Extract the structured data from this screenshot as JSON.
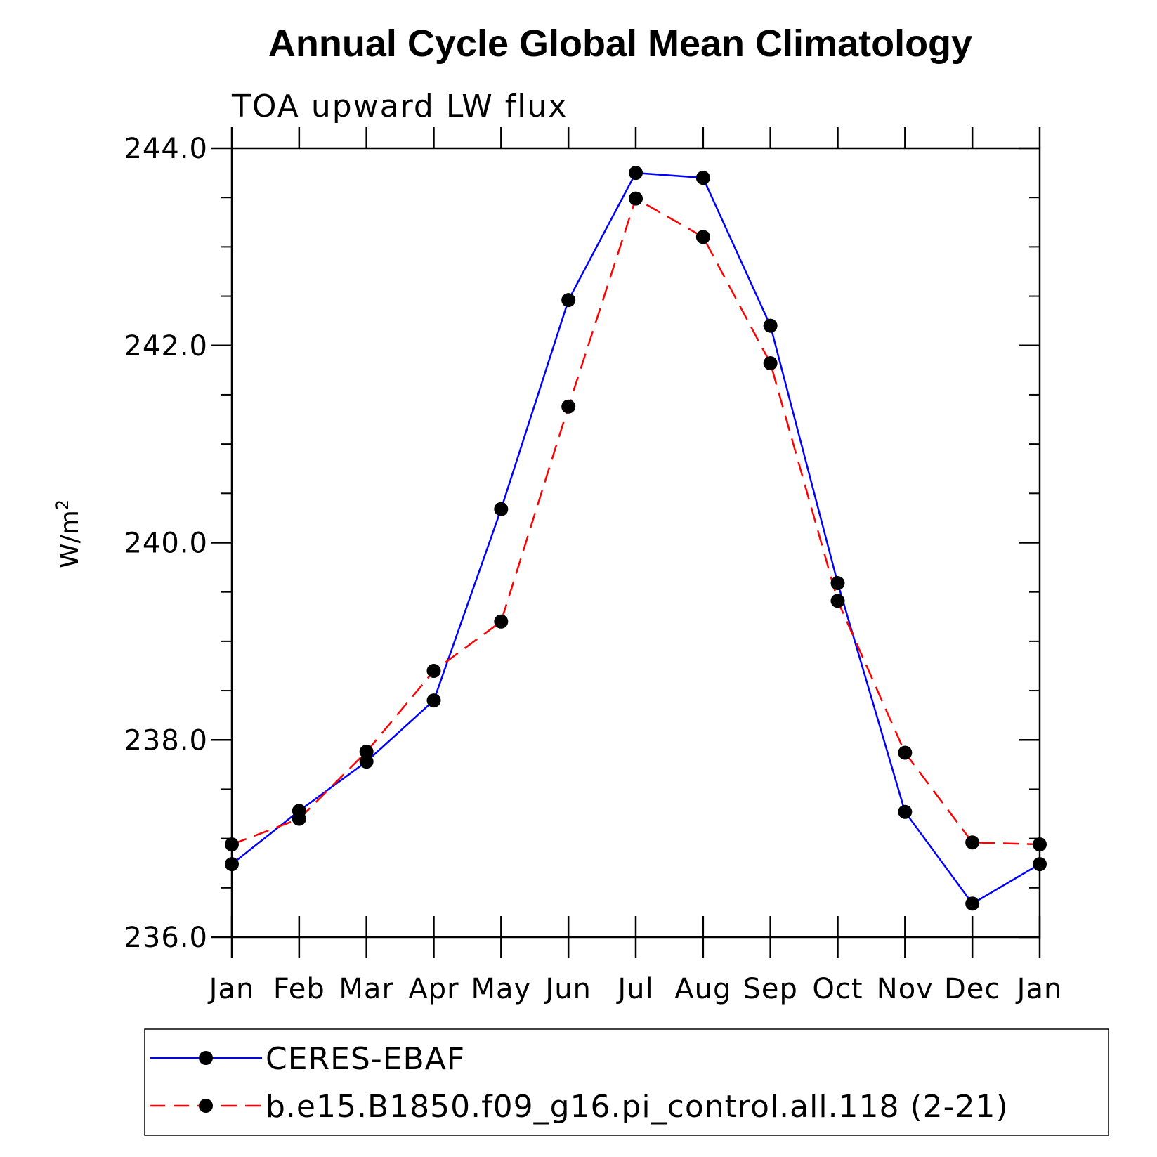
{
  "chart_data": {
    "type": "line",
    "title": "Annual Cycle Global Mean Climatology",
    "subtitle": "TOA upward LW flux",
    "ylabel": "W/m",
    "ylabel_superscript": "2",
    "categories": [
      "Jan",
      "Feb",
      "Mar",
      "Apr",
      "May",
      "Jun",
      "Jul",
      "Aug",
      "Sep",
      "Oct",
      "Nov",
      "Dec",
      "Jan"
    ],
    "ylim": [
      236.0,
      244.0
    ],
    "yticks": [
      "236.0",
      "238.0",
      "240.0",
      "242.0",
      "244.0"
    ],
    "grid": false,
    "legend_position": "bottom",
    "series": [
      {
        "name": "CERES-EBAF",
        "color": "#0000ff",
        "dash": "solid",
        "marker": "filled-circle",
        "values": [
          236.74,
          237.28,
          237.78,
          238.4,
          240.34,
          242.46,
          243.75,
          243.7,
          242.2,
          239.59,
          237.27,
          236.34,
          236.74
        ]
      },
      {
        "name": "b.e15.B1850.f09_g16.pi_control.all.118 (2-21)",
        "color": "#ff0000",
        "dash": "dashed",
        "marker": "filled-circle",
        "values": [
          236.94,
          237.2,
          237.88,
          238.7,
          239.2,
          241.38,
          243.49,
          243.1,
          241.82,
          239.41,
          237.87,
          236.96,
          236.94
        ]
      }
    ]
  }
}
